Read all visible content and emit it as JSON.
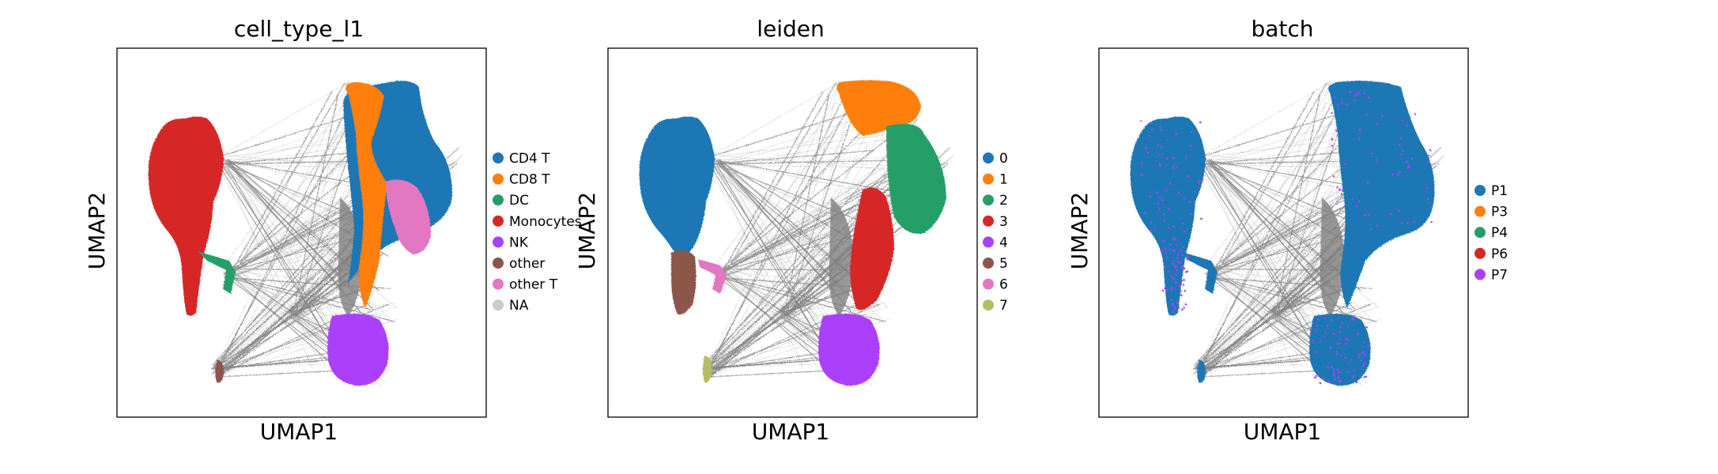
{
  "chart_data": [
    {
      "type": "scatter",
      "title": "cell_type_l1",
      "xlabel": "UMAP1",
      "ylabel": "UMAP2",
      "grid": false,
      "legend": "right",
      "categories": [
        "CD4 T",
        "CD8 T",
        "DC",
        "Monocytes",
        "NK",
        "other",
        "other T",
        "NA"
      ],
      "colors": [
        "#1f77b4",
        "#ff7f0e",
        "#279e68",
        "#d62728",
        "#aa40fc",
        "#8c564b",
        "#e377c2",
        "#cccccc"
      ]
    },
    {
      "type": "scatter",
      "title": "leiden",
      "xlabel": "UMAP1",
      "ylabel": "UMAP2",
      "grid": false,
      "legend": "right",
      "categories": [
        "0",
        "1",
        "2",
        "3",
        "4",
        "5",
        "6",
        "7"
      ],
      "colors": [
        "#1f77b4",
        "#ff7f0e",
        "#279e68",
        "#d62728",
        "#aa40fc",
        "#8c564b",
        "#e377c2",
        "#b5bd61"
      ]
    },
    {
      "type": "scatter",
      "title": "batch",
      "xlabel": "UMAP1",
      "ylabel": "UMAP2",
      "grid": false,
      "legend": "right",
      "categories": [
        "P1",
        "P3",
        "P4",
        "P6",
        "P7"
      ],
      "colors": [
        "#1f77b4",
        "#ff7f0e",
        "#279e68",
        "#d62728",
        "#aa40fc"
      ]
    }
  ]
}
